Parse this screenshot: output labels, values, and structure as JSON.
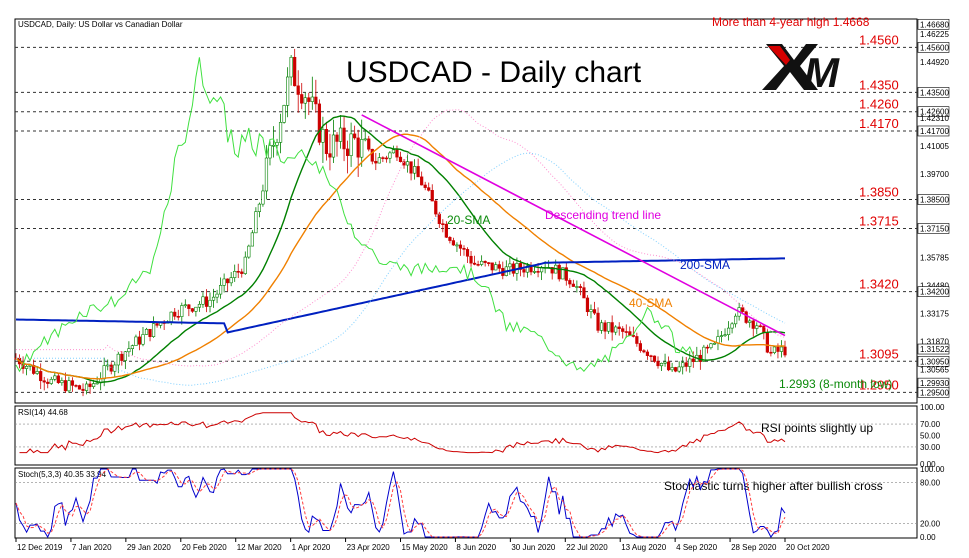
{
  "header": {
    "symbol": "USDCAD, Daily:  US Dollar vs Canadian Dollar",
    "title": "USDCAD - Daily chart",
    "logo_text": "M"
  },
  "annotations": {
    "trend_line": "Descending trend line",
    "sma20": "20-SMA",
    "sma200": "200-SMA",
    "sma40": "40-SMA",
    "low": "1.2993 (8-month low)",
    "high": "More than 4-year high 1.4668"
  },
  "rsi": {
    "label": "RSI(14) 44.68",
    "annotation": "RSI points slightly up",
    "ticks": [
      "100.00",
      "70.00",
      "50.00",
      "30.00",
      "0.00"
    ],
    "tick_values": [
      100,
      70,
      50,
      30,
      0
    ]
  },
  "stoch": {
    "label": "Stoch(5,3,3) 40.35 33.94",
    "annotation": "Stochastic turns higher after bullish cross",
    "ticks": [
      "100.00",
      "80.00",
      "20.00",
      "0.00"
    ],
    "tick_values": [
      100,
      80,
      20,
      0
    ]
  },
  "colors": {
    "bull": "#008000",
    "bear": "#cc0000",
    "sma20": "#008000",
    "sma40": "#f08000",
    "sma200": "#0020c0",
    "trend": "#e000e0",
    "levels": "#e00000",
    "rsi": "#cc0000",
    "stoch_main": "#0000cc",
    "stoch_signal": "#ff4040"
  },
  "chart_data": {
    "type": "candlestick",
    "title": "USDCAD - Daily chart",
    "y_range": [
      1.2905,
      1.4688
    ],
    "x_labels": [
      "12 Dec 2019",
      "7 Jan 2020",
      "29 Jan 2020",
      "20 Feb 2020",
      "12 Mar 2020",
      "1 Apr 2020",
      "23 Apr 2020",
      "15 May 2020",
      "8 Jun 2020",
      "30 Jun 2020",
      "22 Jul 2020",
      "13 Aug 2020",
      "4 Sep 2020",
      "28 Sep 2020",
      "20 Oct 2020"
    ],
    "key_levels": [
      {
        "value": 1.456,
        "label": "1.4560"
      },
      {
        "value": 1.435,
        "label": "1.4350"
      },
      {
        "value": 1.426,
        "label": "1.4260"
      },
      {
        "value": 1.417,
        "label": "1.4170"
      },
      {
        "value": 1.385,
        "label": "1.3850"
      },
      {
        "value": 1.3715,
        "label": "1.3715"
      },
      {
        "value": 1.342,
        "label": "1.3420"
      },
      {
        "value": 1.3095,
        "label": "1.3095"
      },
      {
        "value": 1.295,
        "label": "1.2950"
      }
    ],
    "y_axis_labels": [
      {
        "value": 1.4668,
        "label": "1.46680",
        "boxed": true
      },
      {
        "value": 1.46225,
        "label": "1.46225"
      },
      {
        "value": 1.456,
        "label": "1.45600",
        "boxed": true
      },
      {
        "value": 1.4492,
        "label": "1.44920"
      },
      {
        "value": 1.435,
        "label": "1.43500",
        "boxed": true
      },
      {
        "value": 1.426,
        "label": "1.42600",
        "boxed": true
      },
      {
        "value": 1.4231,
        "label": "1.42310"
      },
      {
        "value": 1.417,
        "label": "1.41700",
        "boxed": true
      },
      {
        "value": 1.41005,
        "label": "1.41005"
      },
      {
        "value": 1.397,
        "label": "1.39700"
      },
      {
        "value": 1.385,
        "label": "1.38500",
        "boxed": true
      },
      {
        "value": 1.3715,
        "label": "1.37150",
        "boxed": true
      },
      {
        "value": 1.35785,
        "label": "1.35785"
      },
      {
        "value": 1.3448,
        "label": "1.34480"
      },
      {
        "value": 1.342,
        "label": "1.34200",
        "boxed": true
      },
      {
        "value": 1.33175,
        "label": "1.33175"
      },
      {
        "value": 1.3187,
        "label": "1.31870"
      },
      {
        "value": 1.31522,
        "label": "1.31522",
        "boxed": true
      },
      {
        "value": 1.3095,
        "label": "1.30950",
        "boxed": true
      },
      {
        "value": 1.30565,
        "label": "1.30565"
      },
      {
        "value": 1.2993,
        "label": "1.29930",
        "boxed": true
      },
      {
        "value": 1.295,
        "label": "1.29500",
        "boxed": true
      }
    ],
    "sessions": 219,
    "current_price": 1.31522,
    "high": 1.4668,
    "low": 1.2993,
    "indicators": [
      "20-SMA",
      "40-SMA",
      "200-SMA",
      "Descending trend line",
      "Ichimoku cloud"
    ]
  }
}
